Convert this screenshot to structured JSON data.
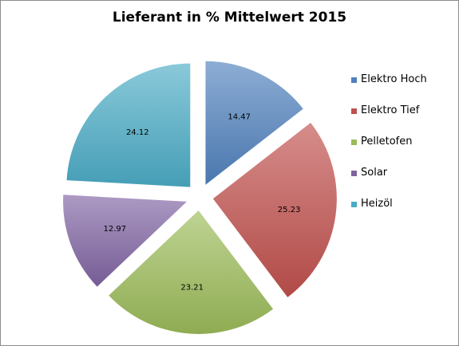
{
  "chart_data": {
    "type": "pie",
    "title": "Lieferant in % Mittelwert 2015",
    "exploded": true,
    "legend_position": "right",
    "slices": [
      {
        "label": "Elektro Hoch",
        "value": 14.47,
        "color": "#4f81bd"
      },
      {
        "label": "Elektro Tief",
        "value": 25.23,
        "color": "#c0504d"
      },
      {
        "label": "Pelletofen",
        "value": 23.21,
        "color": "#9bbb59"
      },
      {
        "label": "Solar",
        "value": 12.97,
        "color": "#8064a2"
      },
      {
        "label": "Heizöl",
        "value": 24.12,
        "color": "#4bacc6"
      }
    ]
  }
}
